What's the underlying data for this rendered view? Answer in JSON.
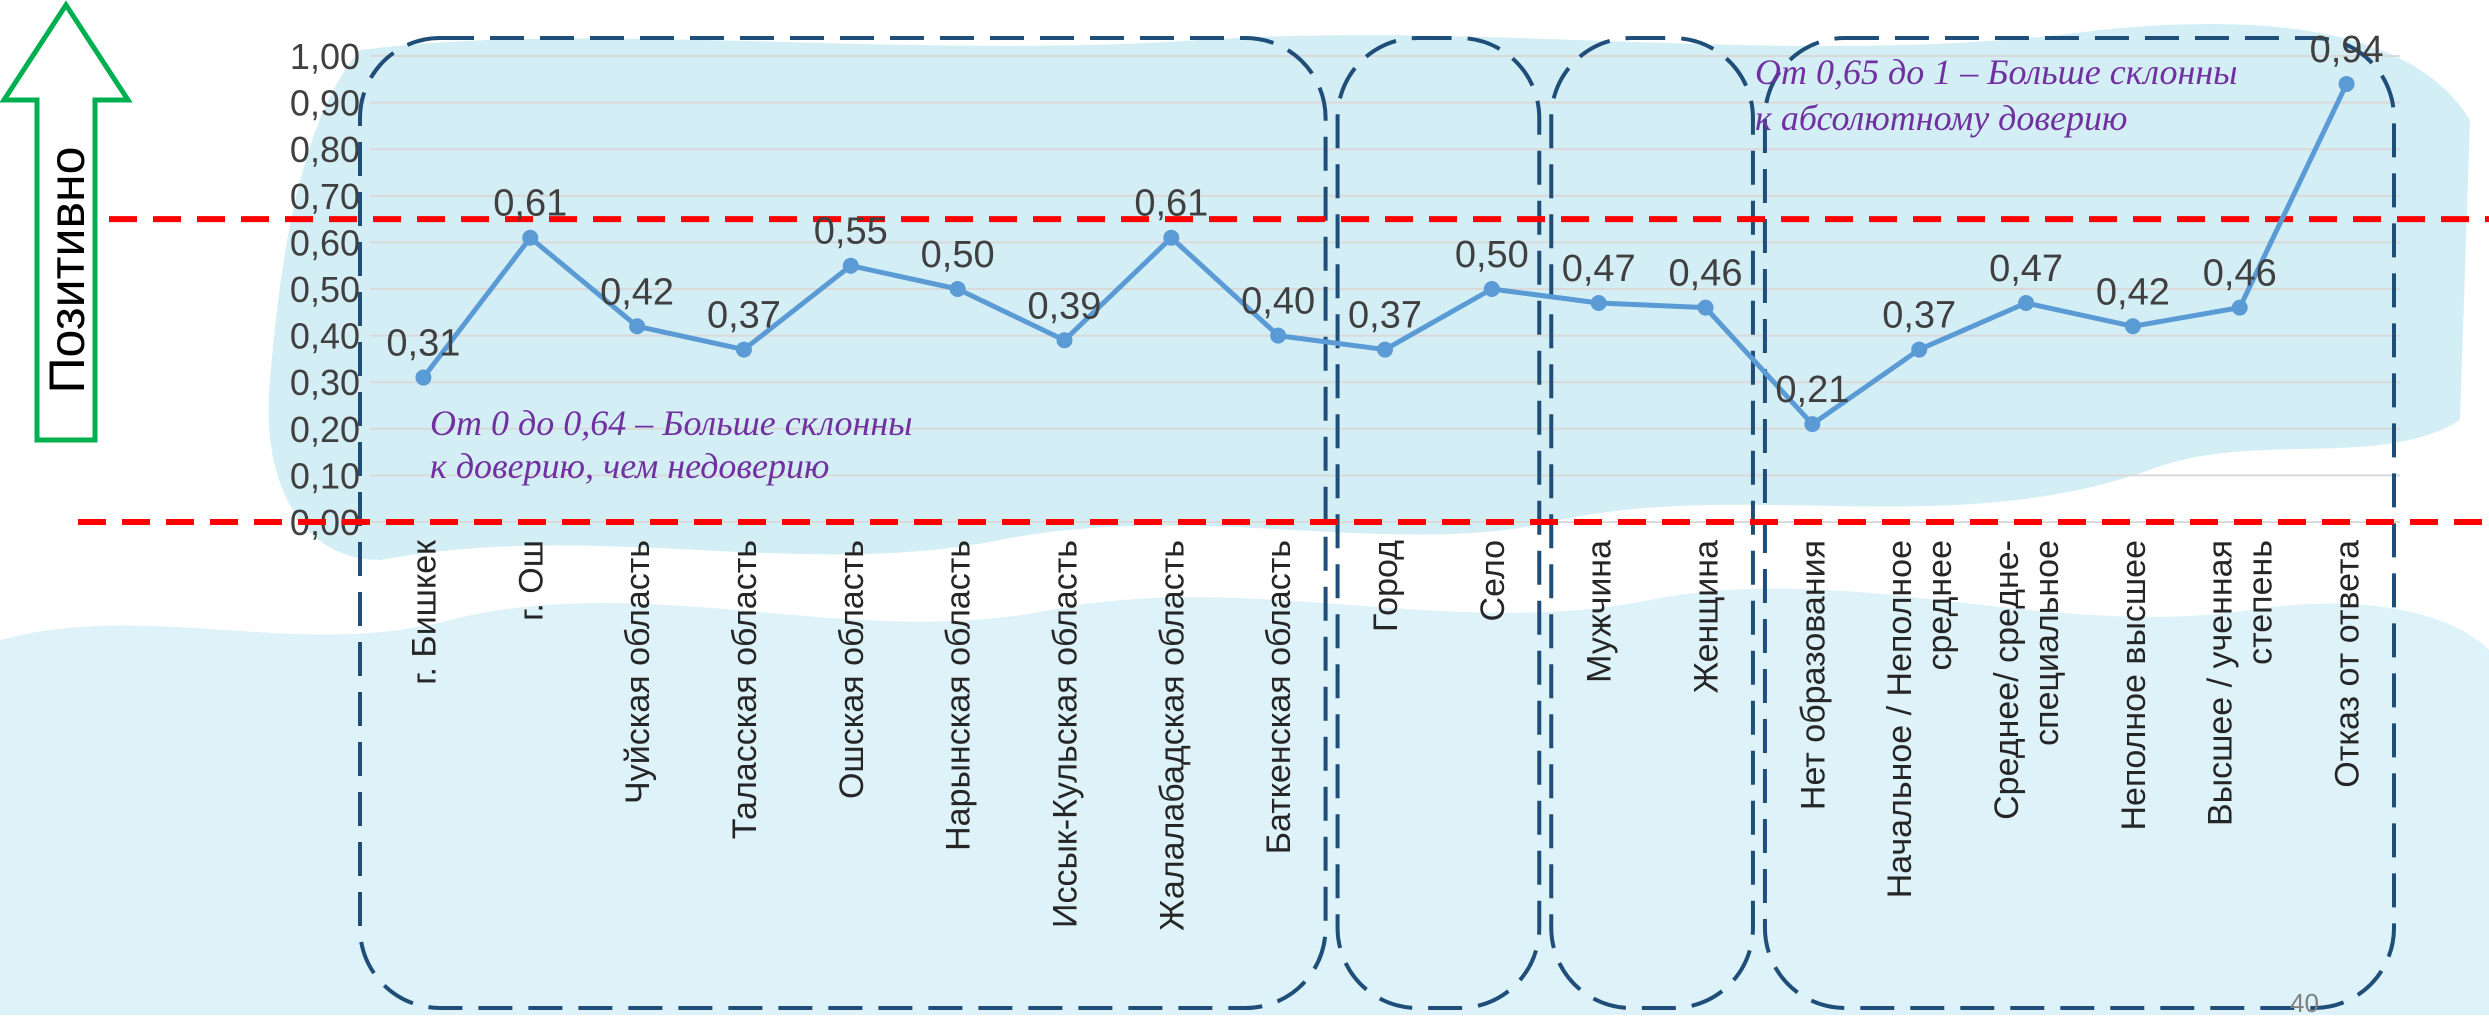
{
  "colors": {
    "line": "#5B9BD5",
    "threshold": "#FF0000",
    "group_border": "#1F4E79",
    "annotation": "#7030A0",
    "arrow": "#00B050",
    "map_fill": "#CDEBF5"
  },
  "side_label": "Позитивно",
  "page_number": "40",
  "annotations": {
    "low": {
      "line1": "От 0 до 0,64 – Больше склонны",
      "line2": "к доверию, чем недоверию"
    },
    "high": {
      "line1": "От 0,65 до 1 – Больше склонны",
      "line2": "к абсолютному доверию"
    }
  },
  "chart_data": {
    "type": "line",
    "ylim": [
      0,
      1
    ],
    "yticks": [
      "0,00",
      "0,10",
      "0,20",
      "0,30",
      "0,40",
      "0,50",
      "0,60",
      "0,70",
      "0,80",
      "0,90",
      "1,00"
    ],
    "grid": true,
    "thresholds": [
      0.0,
      0.65
    ],
    "categories": [
      [
        "г. Бишкек"
      ],
      [
        "г. Ош"
      ],
      [
        "Чуйская область"
      ],
      [
        "Таласская область"
      ],
      [
        "Ошская область"
      ],
      [
        "Нарынская область"
      ],
      [
        "Иссык-Кульская область"
      ],
      [
        "Жалалабадская область"
      ],
      [
        "Баткенская область"
      ],
      [
        "Город"
      ],
      [
        "Село"
      ],
      [
        "Мужчина"
      ],
      [
        "Женщина"
      ],
      [
        "Нет образования"
      ],
      [
        "Начальное / Неполное",
        "среднее"
      ],
      [
        "Среднее/ средне-",
        "специальное"
      ],
      [
        "Неполное высшее"
      ],
      [
        "Высшее / ученная",
        "степень"
      ],
      [
        "Отказ от ответа"
      ]
    ],
    "values": [
      0.31,
      0.61,
      0.42,
      0.37,
      0.55,
      0.5,
      0.39,
      0.61,
      0.4,
      0.37,
      0.5,
      0.47,
      0.46,
      0.21,
      0.37,
      0.47,
      0.42,
      0.46,
      0.94
    ],
    "value_labels": [
      "0,31",
      "0,61",
      "0,42",
      "0,37",
      "0,55",
      "0,50",
      "0,39",
      "0,61",
      "0,40",
      "0,37",
      "0,50",
      "0,47",
      "0,46",
      "0,21",
      "0,37",
      "0,47",
      "0,42",
      "0,46",
      "0,94"
    ],
    "groups": [
      {
        "from": 0,
        "to": 8
      },
      {
        "from": 9,
        "to": 10
      },
      {
        "from": 11,
        "to": 12
      },
      {
        "from": 13,
        "to": 18
      }
    ]
  }
}
